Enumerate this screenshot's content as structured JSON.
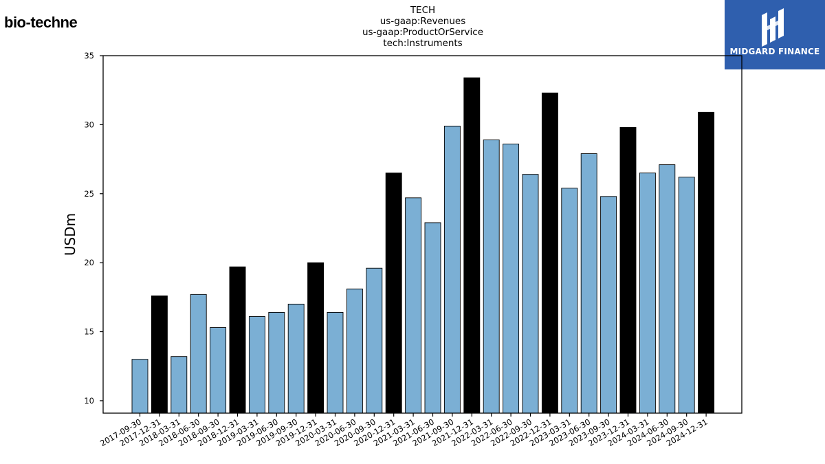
{
  "brand": {
    "left_logo": "bio-techne",
    "right_logo": "MIDGARD FINANCE",
    "colors": {
      "left_logo": "#1b5f9a",
      "right_bg": "#2f5fae"
    }
  },
  "chart_data": {
    "type": "bar",
    "title_lines": [
      "TECH",
      "us-gaap:Revenues",
      "us-gaap:ProductOrService",
      "tech:Instruments"
    ],
    "xlabel": "",
    "ylabel": "USDm",
    "ylim": [
      9.1,
      35
    ],
    "yticks": [
      10,
      15,
      20,
      25,
      30,
      35
    ],
    "grid": false,
    "colors": {
      "quarter": "#7bafd4",
      "year_end": "#000000",
      "edge": "#000000"
    },
    "categories": [
      "2017-09-30",
      "2017-12-31",
      "2018-03-31",
      "2018-06-30",
      "2018-09-30",
      "2018-12-31",
      "2019-03-31",
      "2019-06-30",
      "2019-09-30",
      "2019-12-31",
      "2020-03-31",
      "2020-06-30",
      "2020-09-30",
      "2020-12-31",
      "2021-03-31",
      "2021-06-30",
      "2021-09-30",
      "2021-12-31",
      "2022-03-31",
      "2022-06-30",
      "2022-09-30",
      "2022-12-31",
      "2023-03-31",
      "2023-06-30",
      "2023-09-30",
      "2023-12-31",
      "2024-03-31",
      "2024-06-30",
      "2024-09-30",
      "2024-12-31"
    ],
    "values": [
      13.0,
      17.6,
      13.2,
      17.7,
      15.3,
      19.7,
      16.1,
      16.4,
      17.0,
      20.0,
      16.4,
      18.1,
      19.6,
      26.5,
      24.7,
      22.9,
      29.9,
      33.4,
      28.9,
      28.6,
      26.4,
      32.3,
      25.4,
      27.9,
      24.8,
      29.8,
      26.5,
      27.1,
      26.2,
      30.9
    ],
    "year_end": [
      false,
      true,
      false,
      false,
      false,
      true,
      false,
      false,
      false,
      true,
      false,
      false,
      false,
      true,
      false,
      false,
      false,
      true,
      false,
      false,
      false,
      true,
      false,
      false,
      false,
      true,
      false,
      false,
      false,
      true
    ]
  }
}
